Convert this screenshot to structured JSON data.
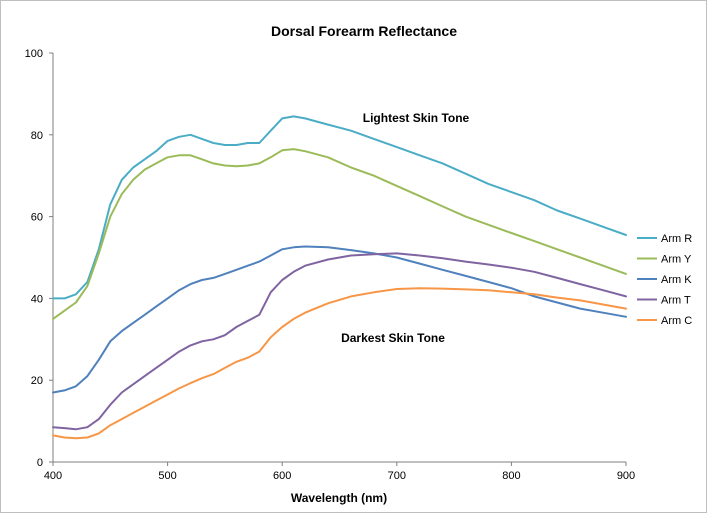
{
  "chart_data": {
    "type": "line",
    "title": "Dorsal Forearm Reflectance",
    "xlabel": "Wavelength (nm)",
    "ylabel": "",
    "xlim": [
      400,
      900
    ],
    "ylim": [
      0,
      100
    ],
    "xticks": [
      400,
      500,
      600,
      700,
      800,
      900
    ],
    "yticks": [
      0,
      20,
      40,
      60,
      80,
      100
    ],
    "grid": false,
    "legend_position": "right",
    "annotations": [
      "Lightest Skin Tone",
      "Darkest Skin Tone"
    ],
    "series": [
      {
        "name": "Arm R",
        "color": "#4BACC6",
        "x": [
          400,
          410,
          420,
          430,
          440,
          450,
          460,
          470,
          480,
          490,
          500,
          510,
          520,
          530,
          540,
          550,
          560,
          570,
          580,
          590,
          600,
          610,
          620,
          640,
          660,
          680,
          700,
          720,
          740,
          760,
          780,
          800,
          820,
          840,
          860,
          880,
          900
        ],
        "values": [
          40,
          40,
          41,
          44,
          52,
          63,
          69,
          72,
          74,
          76,
          78.5,
          79.5,
          80,
          79,
          78,
          77.5,
          77.5,
          78,
          78,
          81,
          84,
          84.5,
          84,
          82.5,
          81,
          79,
          77,
          75,
          73,
          70.5,
          68,
          66,
          64,
          61.5,
          59.5,
          57.5,
          55.5
        ]
      },
      {
        "name": "Arm Y",
        "color": "#9BBB59",
        "x": [
          400,
          410,
          420,
          430,
          440,
          450,
          460,
          470,
          480,
          490,
          500,
          510,
          520,
          530,
          540,
          550,
          560,
          570,
          580,
          590,
          600,
          610,
          620,
          640,
          660,
          680,
          700,
          720,
          740,
          760,
          780,
          800,
          820,
          840,
          860,
          880,
          900
        ],
        "values": [
          35,
          37,
          39,
          43,
          51,
          60,
          65.5,
          69,
          71.5,
          73,
          74.5,
          75,
          75,
          74,
          73,
          72.5,
          72.3,
          72.5,
          73,
          74.5,
          76.2,
          76.5,
          76,
          74.5,
          72,
          70,
          67.5,
          65,
          62.5,
          60,
          58,
          56,
          54,
          52,
          50,
          48,
          46
        ]
      },
      {
        "name": "Arm K",
        "color": "#4F81BD",
        "x": [
          400,
          410,
          420,
          430,
          440,
          450,
          460,
          470,
          480,
          490,
          500,
          510,
          520,
          530,
          540,
          550,
          560,
          570,
          580,
          590,
          600,
          610,
          620,
          640,
          660,
          680,
          700,
          720,
          740,
          760,
          780,
          800,
          820,
          840,
          860,
          880,
          900
        ],
        "values": [
          17,
          17.5,
          18.5,
          21,
          25,
          29.5,
          32,
          34,
          36,
          38,
          40,
          42,
          43.5,
          44.5,
          45,
          46,
          47,
          48,
          49,
          50.5,
          52,
          52.5,
          52.7,
          52.5,
          51.8,
          51,
          50,
          48.5,
          47,
          45.5,
          44,
          42.5,
          40.5,
          39,
          37.5,
          36.5,
          35.5
        ]
      },
      {
        "name": "Arm T",
        "color": "#8064A2",
        "x": [
          400,
          410,
          420,
          430,
          440,
          450,
          460,
          470,
          480,
          490,
          500,
          510,
          520,
          530,
          540,
          550,
          560,
          570,
          580,
          590,
          600,
          610,
          620,
          640,
          660,
          680,
          700,
          720,
          740,
          760,
          780,
          800,
          820,
          840,
          860,
          880,
          900
        ],
        "values": [
          8.5,
          8.3,
          8,
          8.5,
          10.5,
          14,
          17,
          19,
          21,
          23,
          25,
          27,
          28.5,
          29.5,
          30,
          31,
          33,
          34.5,
          36,
          41.5,
          44.5,
          46.5,
          48,
          49.5,
          50.5,
          50.8,
          51,
          50.5,
          49.8,
          49,
          48.3,
          47.5,
          46.5,
          45,
          43.5,
          42,
          40.5
        ]
      },
      {
        "name": "Arm C",
        "color": "#F79646",
        "x": [
          400,
          410,
          420,
          430,
          440,
          450,
          460,
          470,
          480,
          490,
          500,
          510,
          520,
          530,
          540,
          550,
          560,
          570,
          580,
          590,
          600,
          610,
          620,
          640,
          660,
          680,
          700,
          720,
          740,
          760,
          780,
          800,
          820,
          840,
          860,
          880,
          900
        ],
        "values": [
          6.5,
          6,
          5.8,
          6,
          7,
          9,
          10.5,
          12,
          13.5,
          15,
          16.5,
          18,
          19.3,
          20.5,
          21.5,
          23,
          24.5,
          25.5,
          27,
          30.5,
          33,
          35,
          36.5,
          38.8,
          40.5,
          41.5,
          42.3,
          42.5,
          42.4,
          42.2,
          42,
          41.5,
          41,
          40.2,
          39.5,
          38.5,
          37.5
        ]
      }
    ]
  }
}
